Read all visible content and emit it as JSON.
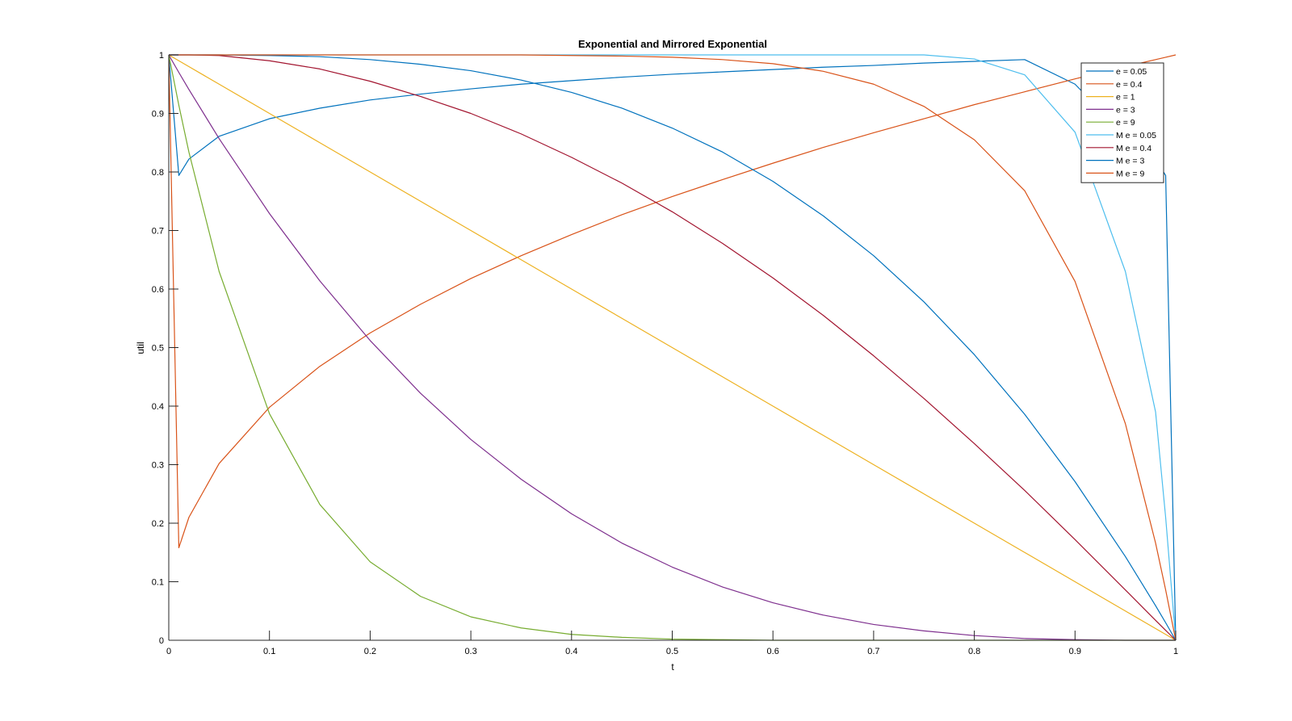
{
  "chart_data": {
    "type": "line",
    "title": "Exponential and Mirrored Exponential",
    "xlabel": "t",
    "ylabel": "util",
    "xlim": [
      0,
      1
    ],
    "ylim": [
      0,
      1
    ],
    "xticks": [
      "0",
      "0.1",
      "0.2",
      "0.3",
      "0.4",
      "0.5",
      "0.6",
      "0.7",
      "0.8",
      "0.9",
      "1"
    ],
    "yticks": [
      "0",
      "0.1",
      "0.2",
      "0.3",
      "0.4",
      "0.5",
      "0.6",
      "0.7",
      "0.8",
      "0.9",
      "1"
    ],
    "grid": false,
    "legend_position": "top-right",
    "x": [
      0,
      0.01,
      0.02,
      0.05,
      0.1,
      0.15,
      0.2,
      0.25,
      0.3,
      0.35,
      0.4,
      0.45,
      0.5,
      0.55,
      0.6,
      0.65,
      0.7,
      0.75,
      0.8,
      0.85,
      0.9,
      0.95,
      0.98,
      0.99,
      1
    ],
    "series": [
      {
        "name": "e = 0.05",
        "color": "#0072bd",
        "values": [
          1,
          0.794,
          0.822,
          0.861,
          0.891,
          0.909,
          0.923,
          0.933,
          0.942,
          0.95,
          0.956,
          0.962,
          0.967,
          0.971,
          0.975,
          0.979,
          0.982,
          0.986,
          0.989,
          0.992,
          0.95,
          0.861,
          0.822,
          0.794,
          0
        ]
      },
      {
        "name": "e = 0.4",
        "color": "#d95319",
        "values": [
          1,
          0.158,
          0.21,
          0.302,
          0.398,
          0.468,
          0.525,
          0.574,
          0.618,
          0.657,
          0.693,
          0.727,
          0.758,
          0.787,
          0.815,
          0.842,
          0.867,
          0.891,
          0.915,
          0.937,
          0.959,
          0.98,
          0.992,
          0.996,
          1
        ]
      },
      {
        "name": "e = 1",
        "color": "#edb120",
        "values": [
          1,
          0.99,
          0.98,
          0.95,
          0.9,
          0.85,
          0.8,
          0.75,
          0.7,
          0.65,
          0.6,
          0.55,
          0.5,
          0.45,
          0.4,
          0.35,
          0.3,
          0.25,
          0.2,
          0.15,
          0.1,
          0.05,
          0.02,
          0.01,
          0
        ]
      },
      {
        "name": "e = 3",
        "color": "#7e2f8e",
        "values": [
          1,
          0.97,
          0.941,
          0.857,
          0.729,
          0.614,
          0.512,
          0.422,
          0.343,
          0.275,
          0.216,
          0.166,
          0.125,
          0.091,
          0.064,
          0.043,
          0.027,
          0.016,
          0.008,
          0.003,
          0.001,
          0,
          0,
          0,
          0
        ]
      },
      {
        "name": "e = 9",
        "color": "#77ac30",
        "values": [
          1,
          0.914,
          0.834,
          0.63,
          0.387,
          0.232,
          0.134,
          0.075,
          0.04,
          0.021,
          0.01,
          0.005,
          0.002,
          0.001,
          0,
          0,
          0,
          0,
          0,
          0,
          0,
          0,
          0,
          0,
          0
        ]
      },
      {
        "name": "M e = 0.05",
        "color": "#4dbeee",
        "values": [
          1,
          1,
          1,
          1,
          1,
          1,
          1,
          1,
          1,
          1,
          1,
          1,
          1,
          1,
          1,
          1,
          1,
          1,
          0.993,
          0.966,
          0.868,
          0.63,
          0.39,
          0.21,
          0
        ]
      },
      {
        "name": "M e = 0.4",
        "color": "#a2142f",
        "values": [
          1,
          1,
          1,
          0.999,
          0.99,
          0.976,
          0.955,
          0.929,
          0.9,
          0.865,
          0.825,
          0.781,
          0.732,
          0.678,
          0.619,
          0.555,
          0.486,
          0.413,
          0.336,
          0.256,
          0.172,
          0.086,
          0.034,
          0.017,
          0
        ]
      },
      {
        "name": "M e = 3",
        "color": "#0072bd",
        "values": [
          1,
          1,
          1,
          1,
          0.999,
          0.997,
          0.992,
          0.984,
          0.973,
          0.957,
          0.936,
          0.909,
          0.875,
          0.834,
          0.784,
          0.725,
          0.657,
          0.578,
          0.488,
          0.386,
          0.271,
          0.143,
          0.059,
          0.03,
          0
        ]
      },
      {
        "name": "M e = 9",
        "color": "#d95319",
        "values": [
          1,
          1,
          1,
          1,
          1,
          1,
          1,
          1,
          1,
          1,
          0.999,
          0.998,
          0.996,
          0.992,
          0.985,
          0.972,
          0.95,
          0.912,
          0.855,
          0.768,
          0.613,
          0.37,
          0.166,
          0.086,
          0
        ]
      }
    ]
  }
}
